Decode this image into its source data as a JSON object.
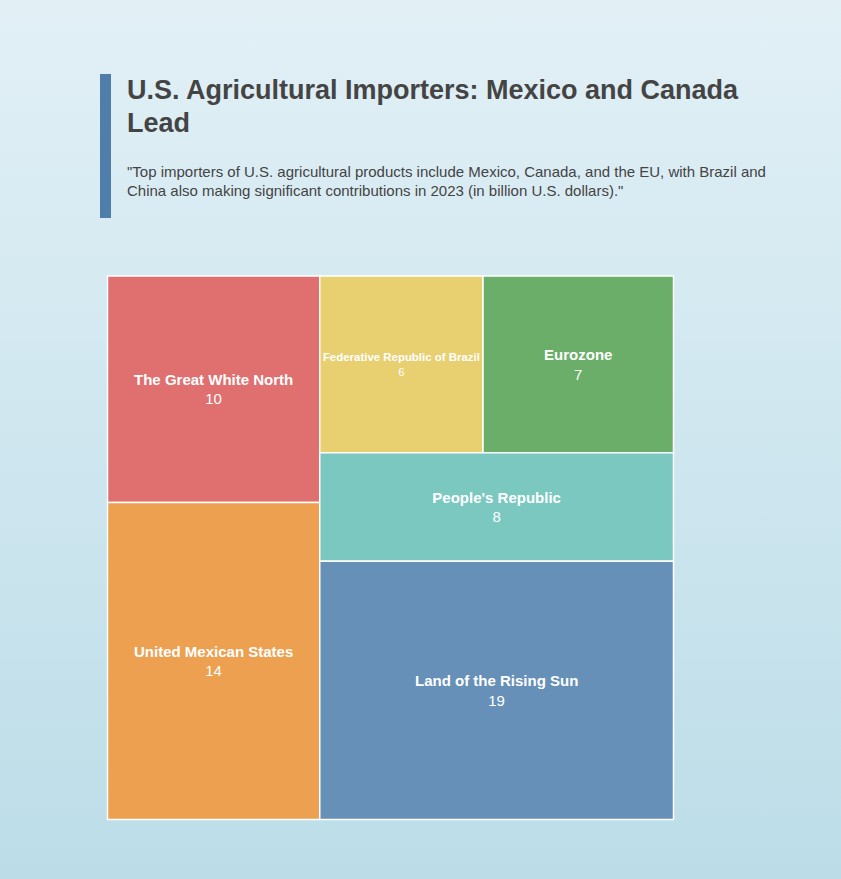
{
  "chart_data": {
    "type": "treemap",
    "title": "U.S. Agricultural Importers: Mexico and Canada Lead",
    "subtitle": "\"Top importers of U.S. agricultural products include Mexico, Canada, and the EU, with Brazil and China also making significant contributions in 2023 (in billion U.S. dollars).\"",
    "categories": [
      "The Great White North",
      "United Mexican States",
      "Federative Republic of Brazil",
      "Eurozone",
      "People's Republic",
      "Land of the Rising Sun"
    ],
    "values": [
      10,
      14,
      6,
      7,
      8,
      19
    ],
    "colors": [
      "#e07070",
      "#eda050",
      "#e8d070",
      "#6aae6a",
      "#7ac8c0",
      "#6690b8"
    ],
    "data_labels": true
  }
}
